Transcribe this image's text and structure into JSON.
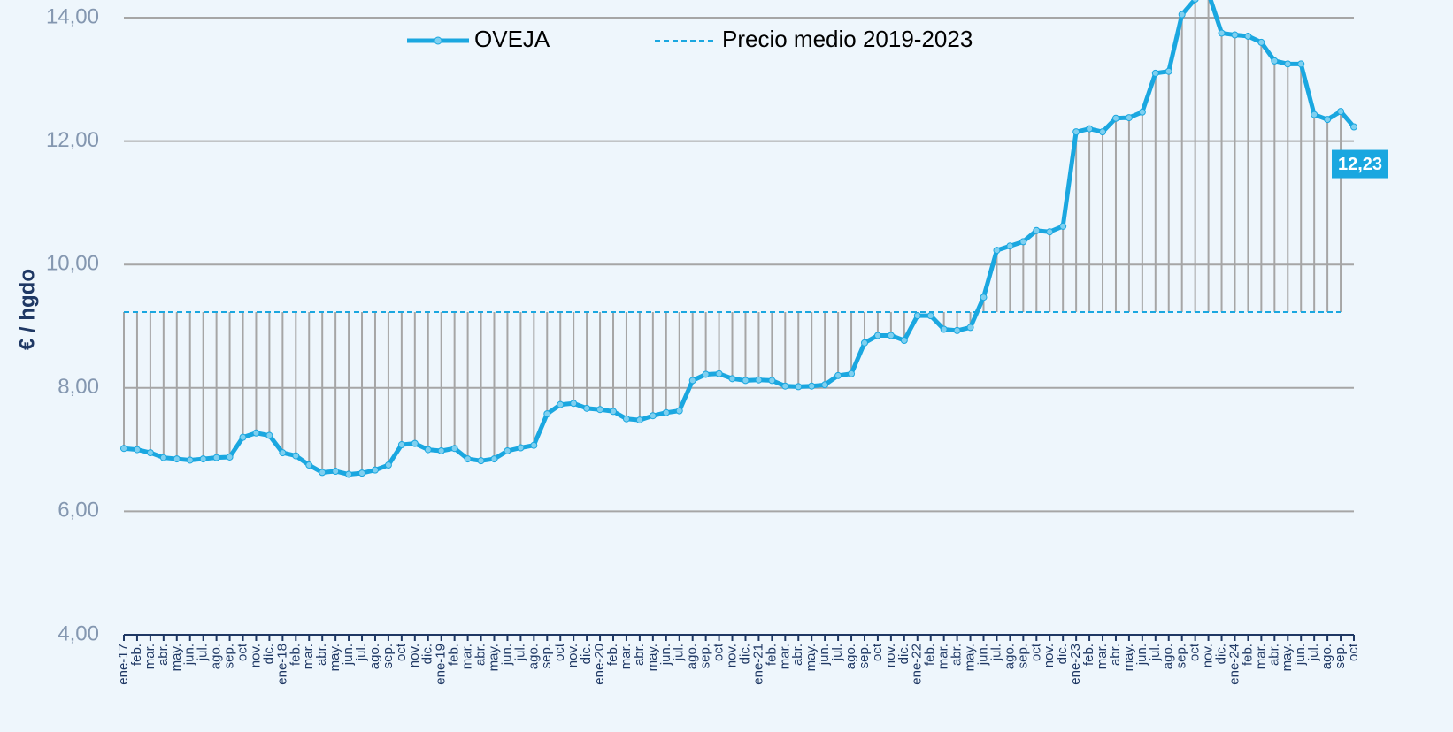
{
  "chart_data": {
    "type": "line",
    "y_label": "€ / hgdo",
    "categories": [
      "ene-17",
      "feb.",
      "mar.",
      "abr.",
      "may.",
      "jun.",
      "jul.",
      "ago.",
      "sep.",
      "oct",
      "nov.",
      "dic.",
      "ene-18",
      "feb.",
      "mar.",
      "abr.",
      "may.",
      "jun.",
      "jul.",
      "ago.",
      "sep.",
      "oct",
      "nov.",
      "dic.",
      "ene-19",
      "feb.",
      "mar.",
      "abr.",
      "may.",
      "jun.",
      "jul.",
      "ago.",
      "sep.",
      "oct",
      "nov.",
      "dic.",
      "ene-20",
      "feb.",
      "mar.",
      "abr.",
      "may.",
      "jun.",
      "jul.",
      "ago.",
      "sep.",
      "oct",
      "nov.",
      "dic.",
      "ene-21",
      "feb.",
      "mar.",
      "abr.",
      "may.",
      "jun.",
      "jul.",
      "ago.",
      "sep.",
      "oct",
      "nov.",
      "dic.",
      "ene-22",
      "feb.",
      "mar.",
      "abr.",
      "may.",
      "jun.",
      "jul.",
      "ago.",
      "sep.",
      "oct",
      "nov.",
      "dic.",
      "ene-23",
      "feb.",
      "mar.",
      "abr.",
      "may.",
      "jun.",
      "jul.",
      "ago.",
      "sep.",
      "oct",
      "nov.",
      "dic.",
      "ene-24",
      "feb.",
      "mar.",
      "abr.",
      "may.",
      "jun.",
      "jul.",
      "ago.",
      "sep.",
      "oct"
    ],
    "series": [
      {
        "name": "OVEJA",
        "color": "#1aa7e0",
        "style": "solid",
        "values": [
          7.02,
          7.0,
          6.95,
          6.87,
          6.85,
          6.83,
          6.85,
          6.87,
          6.88,
          7.2,
          7.27,
          7.23,
          6.95,
          6.9,
          6.75,
          6.63,
          6.65,
          6.6,
          6.62,
          6.67,
          6.75,
          7.08,
          7.1,
          7.0,
          6.98,
          7.02,
          6.85,
          6.82,
          6.85,
          6.98,
          7.03,
          7.07,
          7.58,
          7.73,
          7.75,
          7.67,
          7.65,
          7.62,
          7.5,
          7.48,
          7.55,
          7.6,
          7.63,
          8.12,
          8.22,
          8.23,
          8.15,
          8.12,
          8.13,
          8.12,
          8.03,
          8.02,
          8.03,
          8.05,
          8.2,
          8.23,
          8.73,
          8.85,
          8.85,
          8.77,
          9.17,
          9.17,
          8.95,
          8.93,
          8.98,
          9.47,
          10.23,
          10.3,
          10.37,
          10.55,
          10.53,
          10.62,
          12.15,
          12.2,
          12.15,
          12.37,
          12.38,
          12.47,
          13.1,
          13.13,
          14.05,
          14.3,
          14.4,
          13.75,
          13.72,
          13.7,
          13.6,
          13.3,
          13.25,
          13.25,
          12.43,
          12.35,
          12.48,
          12.23
        ],
        "value_labels": [
          null,
          null,
          null,
          null,
          null,
          null,
          null,
          null,
          null,
          null,
          null,
          null,
          null,
          null,
          null,
          null,
          null,
          null,
          null,
          null,
          null,
          null,
          null,
          null,
          null,
          null,
          null,
          null,
          null,
          null,
          null,
          null,
          null,
          null,
          null,
          null,
          null,
          null,
          null,
          null,
          null,
          null,
          null,
          null,
          null,
          null,
          null,
          null,
          null,
          null,
          null,
          null,
          null,
          null,
          null,
          null,
          null,
          null,
          null,
          null,
          null,
          null,
          null,
          null,
          null,
          null,
          null,
          null,
          null,
          null,
          null,
          null,
          null,
          null,
          null,
          null,
          null,
          null,
          null,
          null,
          null,
          null,
          null,
          null,
          null,
          null,
          null,
          null,
          null,
          null,
          null,
          null,
          null,
          "12,23"
        ]
      },
      {
        "name": "Precio medio 2019-2023",
        "color": "#1aa7e0",
        "style": "dashed",
        "values": [
          9.23,
          9.23,
          9.23,
          9.23,
          9.23,
          9.23,
          9.23,
          9.23,
          9.23,
          9.23,
          9.23,
          9.23,
          9.23,
          9.23,
          9.23,
          9.23,
          9.23,
          9.23,
          9.23,
          9.23,
          9.23,
          9.23,
          9.23,
          9.23,
          9.23,
          9.23,
          9.23,
          9.23,
          9.23,
          9.23,
          9.23,
          9.23,
          9.23,
          9.23,
          9.23,
          9.23,
          9.23,
          9.23,
          9.23,
          9.23,
          9.23,
          9.23,
          9.23,
          9.23,
          9.23,
          9.23,
          9.23,
          9.23,
          9.23,
          9.23,
          9.23,
          9.23,
          9.23,
          9.23,
          9.23,
          9.23,
          9.23,
          9.23,
          9.23,
          9.23,
          9.23,
          9.23,
          9.23,
          9.23,
          9.23,
          9.23,
          9.23,
          9.23,
          9.23,
          9.23,
          9.23,
          9.23,
          9.23,
          9.23,
          9.23,
          9.23,
          9.23,
          9.23,
          9.23,
          9.23,
          9.23,
          9.23,
          9.23,
          9.23,
          9.23,
          9.23,
          9.23,
          9.23,
          9.23,
          9.23,
          9.23,
          9.23,
          9.23,
          null
        ]
      }
    ],
    "ylim": [
      4,
      14
    ],
    "yticks": [
      {
        "value": 4,
        "label": "4,00"
      },
      {
        "value": 6,
        "label": "6,00"
      },
      {
        "value": 8,
        "label": "8,00"
      },
      {
        "value": 10,
        "label": "10,00"
      },
      {
        "value": 12,
        "label": "12,00"
      },
      {
        "value": 14,
        "label": "14,00"
      }
    ],
    "grid": true,
    "drop_lines": true,
    "legend": "top"
  }
}
